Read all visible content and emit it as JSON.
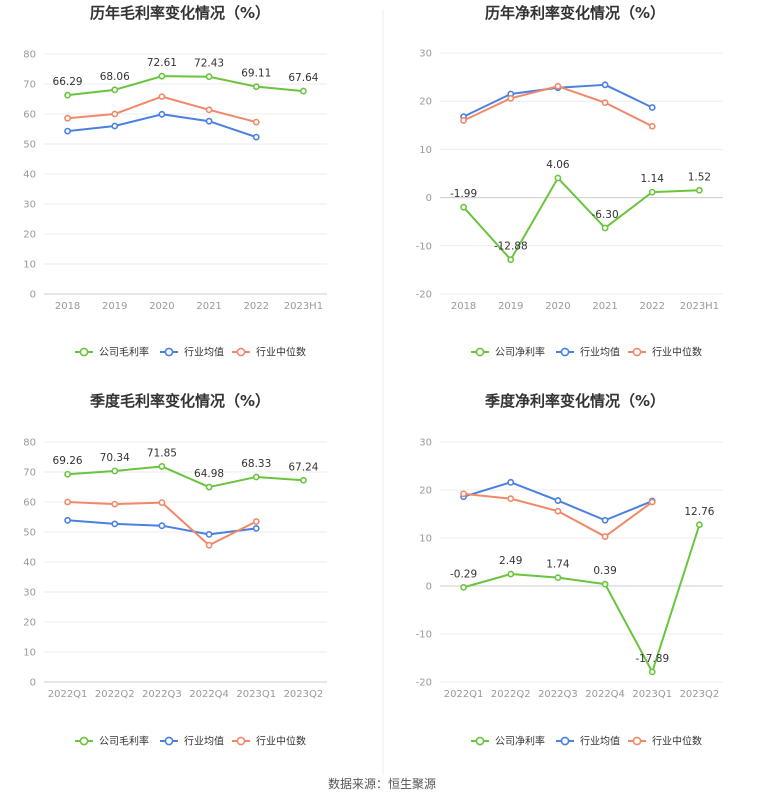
{
  "source": "数据来源：恒生聚源",
  "colors": {
    "company": "#6ac43d",
    "industry_avg": "#4a80e0",
    "industry_median": "#f0896a"
  },
  "chart_data": [
    {
      "type": "line",
      "title": "历年毛利率变化情况（%）",
      "categories": [
        "2018",
        "2019",
        "2020",
        "2021",
        "2022",
        "2023H1"
      ],
      "ylim": [
        0,
        80
      ],
      "yticks": [
        0,
        10,
        20,
        30,
        40,
        50,
        60,
        70,
        80
      ],
      "series": [
        {
          "name": "公司毛利率",
          "key": "company",
          "values": [
            66.29,
            68.06,
            72.61,
            72.43,
            69.11,
            67.64
          ],
          "labels": [
            "66.29",
            "68.06",
            "72.61",
            "72.43",
            "69.11",
            "67.64"
          ]
        },
        {
          "name": "行业均值",
          "key": "industry_avg",
          "values": [
            54.3,
            56.0,
            59.9,
            57.6,
            52.3,
            null
          ]
        },
        {
          "name": "行业中位数",
          "key": "industry_median",
          "values": [
            58.6,
            60.0,
            65.8,
            61.4,
            57.3,
            null
          ]
        }
      ]
    },
    {
      "type": "line",
      "title": "历年净利率变化情况（%）",
      "categories": [
        "2018",
        "2019",
        "2020",
        "2021",
        "2022",
        "2023H1"
      ],
      "ylim": [
        -20,
        30
      ],
      "yticks": [
        -20,
        -10,
        0,
        10,
        20,
        30
      ],
      "series": [
        {
          "name": "公司净利率",
          "key": "company",
          "values": [
            -1.99,
            -12.88,
            4.06,
            -6.3,
            1.14,
            1.52
          ],
          "labels": [
            "-1.99",
            "-12.88",
            "4.06",
            "-6.30",
            "1.14",
            "1.52"
          ]
        },
        {
          "name": "行业均值",
          "key": "industry_avg",
          "values": [
            16.8,
            21.5,
            22.8,
            23.4,
            18.7,
            null
          ]
        },
        {
          "name": "行业中位数",
          "key": "industry_median",
          "values": [
            16.0,
            20.6,
            23.1,
            19.7,
            14.8,
            null
          ]
        }
      ]
    },
    {
      "type": "line",
      "title": "季度毛利率变化情况（%）",
      "categories": [
        "2022Q1",
        "2022Q2",
        "2022Q3",
        "2022Q4",
        "2023Q1",
        "2023Q2"
      ],
      "ylim": [
        0,
        80
      ],
      "yticks": [
        0,
        10,
        20,
        30,
        40,
        50,
        60,
        70,
        80
      ],
      "series": [
        {
          "name": "公司毛利率",
          "key": "company",
          "values": [
            69.26,
            70.34,
            71.85,
            64.98,
            68.33,
            67.24
          ],
          "labels": [
            "69.26",
            "70.34",
            "71.85",
            "64.98",
            "68.33",
            "67.24"
          ]
        },
        {
          "name": "行业均值",
          "key": "industry_avg",
          "values": [
            53.9,
            52.7,
            52.1,
            49.2,
            51.2,
            null
          ]
        },
        {
          "name": "行业中位数",
          "key": "industry_median",
          "values": [
            60.0,
            59.3,
            59.8,
            45.6,
            53.5,
            null
          ]
        }
      ]
    },
    {
      "type": "line",
      "title": "季度净利率变化情况（%）",
      "categories": [
        "2022Q1",
        "2022Q2",
        "2022Q3",
        "2022Q4",
        "2023Q1",
        "2023Q2"
      ],
      "ylim": [
        -20,
        30
      ],
      "yticks": [
        -20,
        -10,
        0,
        10,
        20,
        30
      ],
      "series": [
        {
          "name": "公司净利率",
          "key": "company",
          "values": [
            -0.29,
            2.49,
            1.74,
            0.39,
            -17.89,
            12.76
          ],
          "labels": [
            "-0.29",
            "2.49",
            "1.74",
            "0.39",
            "-17.89",
            "12.76"
          ]
        },
        {
          "name": "行业均值",
          "key": "industry_avg",
          "values": [
            18.6,
            21.6,
            17.8,
            13.7,
            17.7,
            null
          ]
        },
        {
          "name": "行业中位数",
          "key": "industry_median",
          "values": [
            19.2,
            18.2,
            15.6,
            10.3,
            17.5,
            null
          ]
        }
      ]
    }
  ]
}
